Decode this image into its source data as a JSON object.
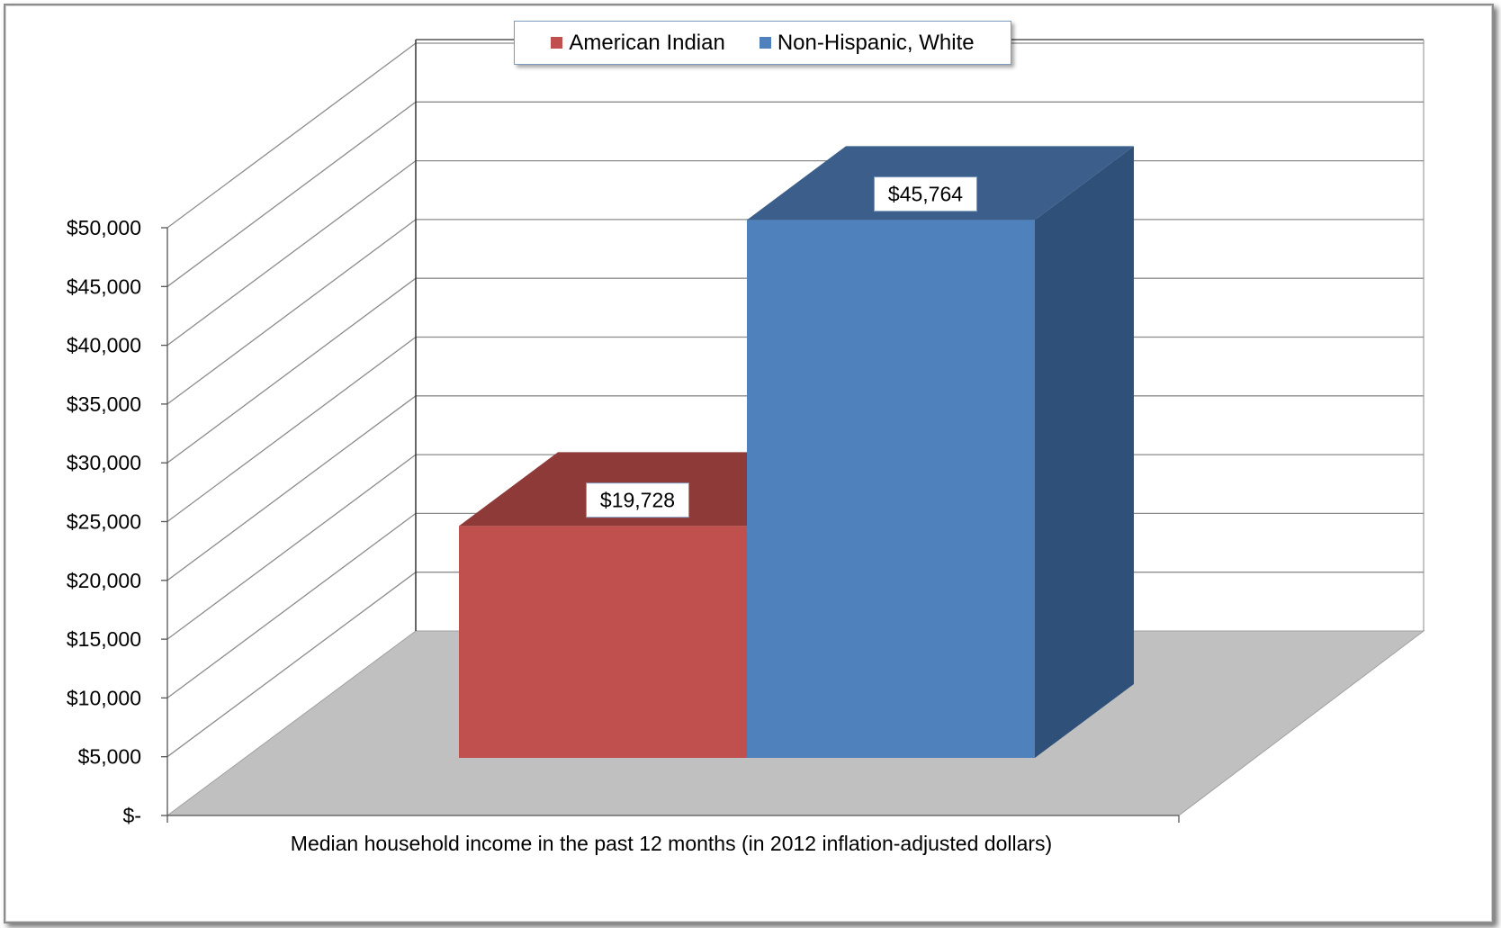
{
  "chart_data": {
    "type": "bar",
    "style": "3d-clustered-column",
    "categories": [
      "Median household income in the past 12 months (in 2012 inflation-adjusted dollars)"
    ],
    "series": [
      {
        "name": "American Indian",
        "values": [
          19728
        ],
        "color": "#c0504d",
        "top_color": "#8e3a39",
        "label": "$19,728"
      },
      {
        "name": "Non-Hispanic, White",
        "values": [
          45764
        ],
        "color": "#4f81bd",
        "top_color": "#3b5f8a",
        "side_color": "#2f5078",
        "label": "$45,764"
      }
    ],
    "xlabel": "Median household income in the past 12 months (in 2012 inflation-adjusted dollars)",
    "ylim": [
      0,
      50000
    ],
    "y_ticks": [
      0,
      5000,
      10000,
      15000,
      20000,
      25000,
      30000,
      35000,
      40000,
      45000,
      50000
    ],
    "y_tick_labels": [
      "$-",
      "$5,000",
      "$10,000",
      "$15,000",
      "$20,000",
      "$25,000",
      "$30,000",
      "$35,000",
      "$40,000",
      "$45,000",
      "$50,000"
    ],
    "grid": true,
    "legend_position": "top",
    "floor_color": "#c0c0c0"
  }
}
